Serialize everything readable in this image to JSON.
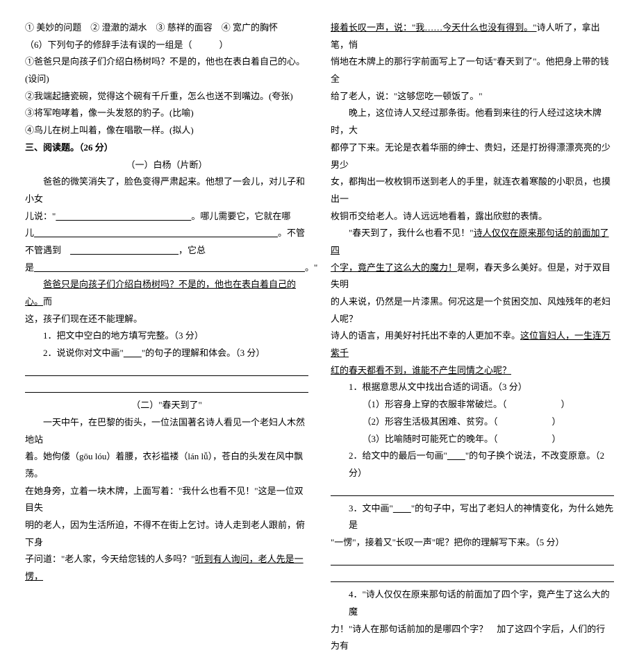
{
  "left": {
    "l1": "① 美妙的问题　② 澄澈的湖水　③ 慈祥的面容　④ 宽广的胸怀",
    "l2": "（6）下列句子的修辞手法有误的一组是（　　　）",
    "l3": "①爸爸只是向孩子们介绍白杨树吗？不是的，他也在表白着自己的心。(设问)",
    "l4": "②我端起搪瓷碗，觉得这个碗有千斤重，怎么也送不到嘴边。(夸张)",
    "l5": "③将军咆哮着，像一头发怒的豹子。(比喻)",
    "l6": "④鸟儿在树上叫着，像在唱歌一样。(拟人)",
    "sec3": "三、阅读题。（26 分）",
    "t1": "（一）白杨（片断）",
    "p1a": "爸爸的微笑消失了，脸色变得严肃起来。他想了一会儿，对儿子和小女",
    "p1b_pre": "儿说：\"",
    "p1b_post": "。哪儿需要它，它就在哪",
    "p1c_pre": "儿",
    "p1c_post": "。不管",
    "p1d_pre": "不管遇到",
    "p1d_post": "，它总",
    "p1e_pre": "是",
    "p1e_post": "。\"",
    "p2": "爸爸只是向孩子们介绍白杨树吗？不是的，他也在表白着自己的心。",
    "p2b": "而",
    "p2c": "这，孩子们现在还不能理解。",
    "q1": "1．把文中空白的地方填写完整。（3 分）",
    "q2a": "2．说说你对文中画\"",
    "q2b": "\"的句子的理解和体会。（3 分）",
    "t2": "（二）\"春天到了\"",
    "s1": "一天中午，在巴黎的街头，一位法国著名诗人看见一个老妇人木然地站",
    "s2": "着。她佝偻（gōu lóu）着腰，衣衫褴褛（lán lǚ），苍白的头发在风中飘荡。",
    "s3": "在她身旁，立着一块木牌，上面写着：\"我什么也看不见！\"这是一位双目失",
    "s4": "明的老人，因为生活所迫，不得不在街上乞讨。诗人走到老人跟前，俯下身",
    "s5a": "子问道：\"老人家，今天给您钱的人多吗？\"",
    "s5u": "听到有人询问，老人先是一愣，"
  },
  "right": {
    "r1u": "接着长叹一声，说：\"我……今天什么也没有得到。\"",
    "r1b": "诗人听了，拿出笔，悄",
    "r2": "悄地在木牌上的那行字前面写上了一句话\"春天到了\"。他把身上带的钱全",
    "r3": "给了老人，说：\"这够您吃一顿饭了。\"",
    "r4": "晚上，这位诗人又经过那条街。他看到来往的行人经过这块木牌时，大",
    "r5": "都停了下来。无论是衣着华丽的绅士、贵妇，还是打扮得漂漂亮亮的少男少",
    "r6": "女，都掏出一枚枚铜币送到老人的手里，就连衣着寒酸的小职员，也摸出一",
    "r7": "枚铜币交给老人。诗人远远地看着，露出欣慰的表情。",
    "r8a": "\"春天到了，我什么也看不见！\"",
    "r8u": "诗人仅仅在原来那句话的前面加了四",
    "r9u": "个字，竟产生了这么大的魔力！",
    "r9b": "是啊，春天多么美好。但是，对于双目失明",
    "r10": "的人来说，仍然是一片漆黑。何况这是一个贫困交加、风烛残年的老妇人呢？",
    "r11a": "诗人的语言，用美好衬托出不幸的人更加不幸。",
    "r11u": "这位盲妇人，一生连万紫千",
    "r12u": "红的春天都看不到，谁能不产生同情之心呢？",
    "q1": "1．根据意思从文中找出合适的词语。（3 分）",
    "q1a": "（1）形容身上穿的衣服非常破烂。（　　　　　　）",
    "q1b": "（2）形容生活极其困难、贫穷。（　　　　　　）",
    "q1c": "（3）比喻随时可能死亡的晚年。（　　　　　　）",
    "q2a": "2．给文中的最后一句画\"",
    "q2b": "\"的句子换个说法，不改变原意。（2 分）",
    "q3a": "3．文中画\"",
    "q3b": "\"的句子中，写出了老妇人的神情变化，为什么她先是",
    "q3c": "\"一愣\"，接着又\"长叹一声\"呢？把你的理解写下来。（5 分）",
    "q4a": "4．\"诗人仅仅在原来那句话的前面加了四个字，竟产生了这么大的魔",
    "q4b": "力！\"诗人在那句话前加的是哪四个字？　加了这四个字后，人们的行为有"
  }
}
